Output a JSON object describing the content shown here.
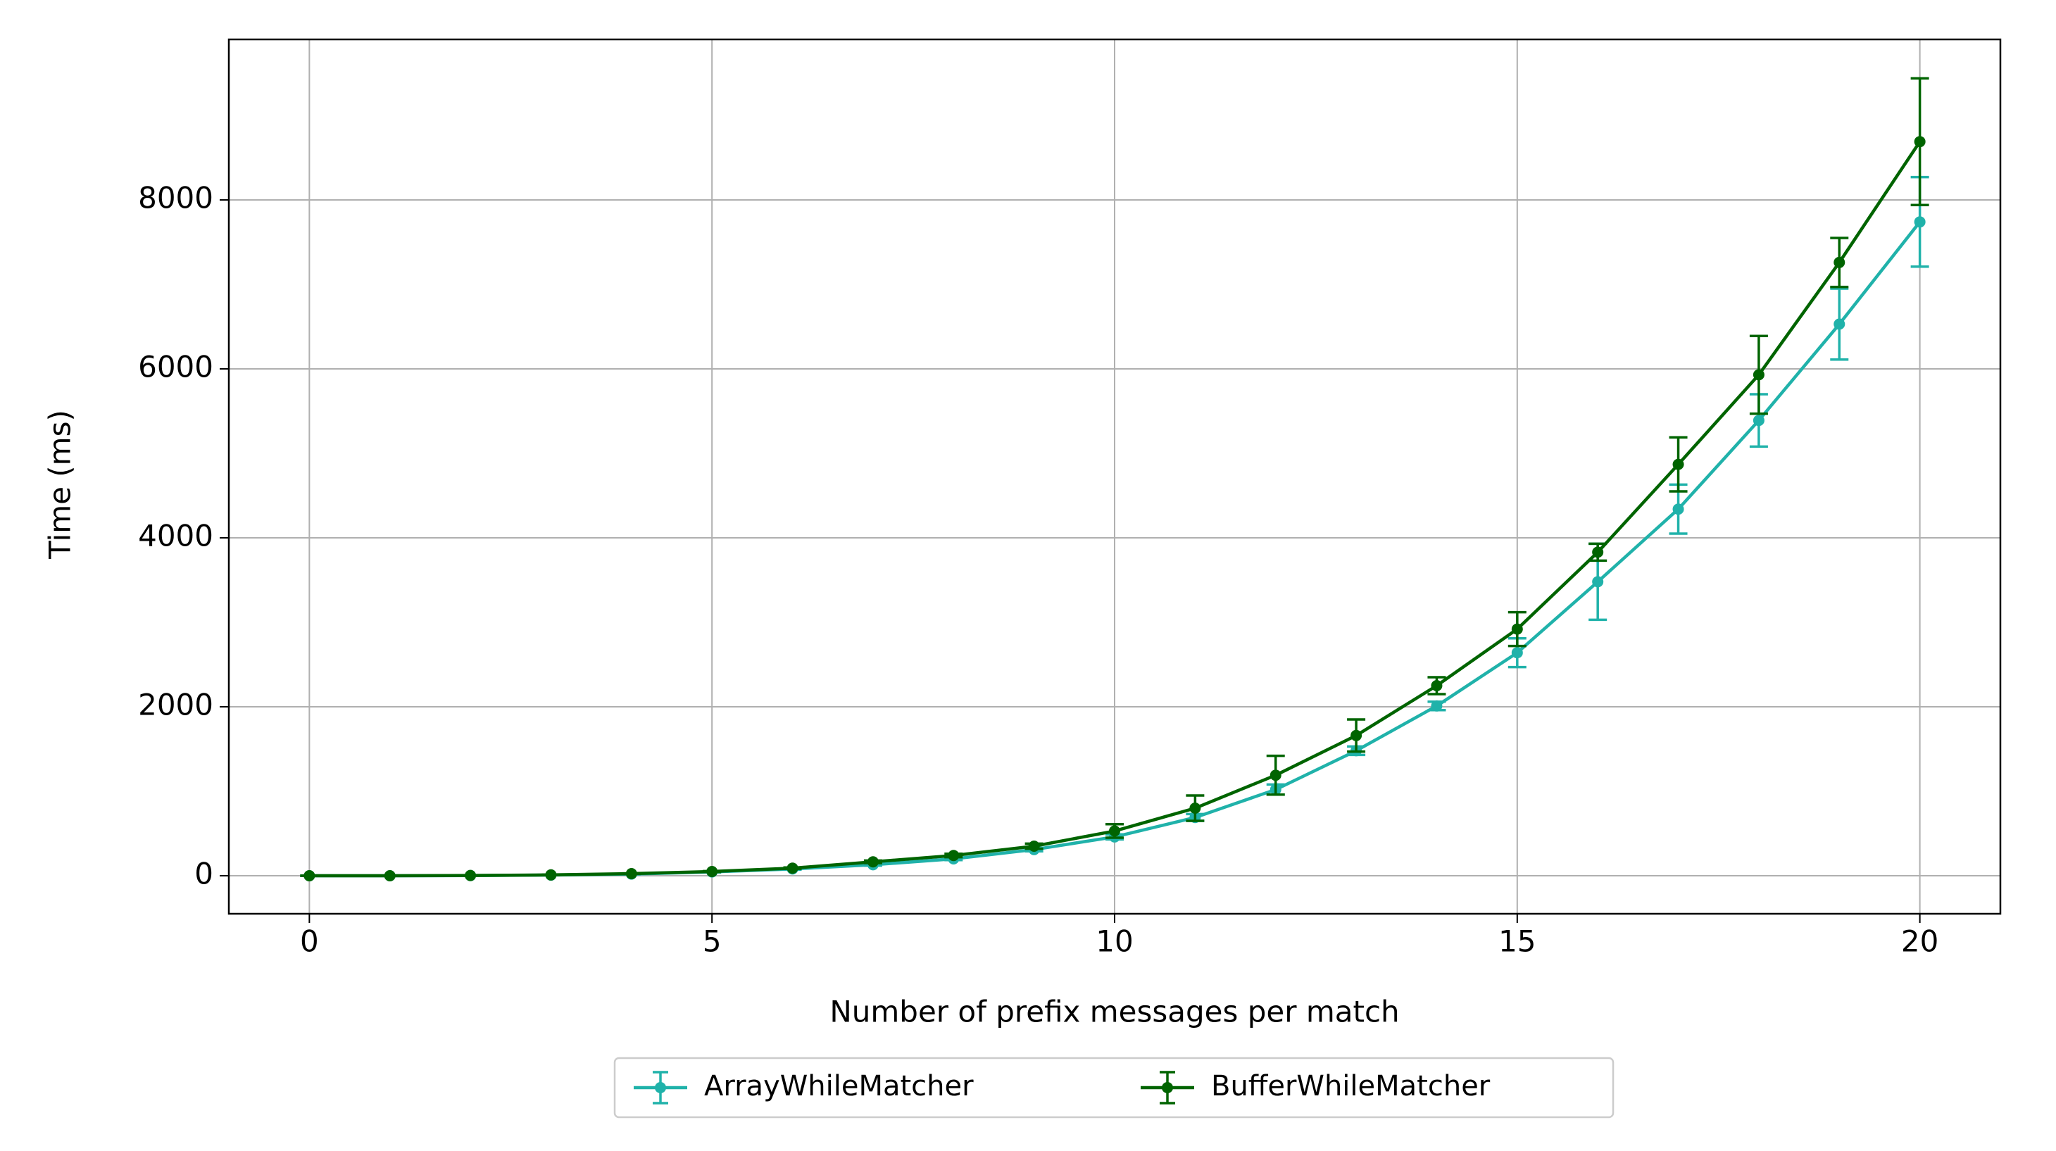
{
  "chart_data": {
    "type": "line",
    "xlabel": "Number of prefix messages per match",
    "ylabel": "Time (ms)",
    "x": [
      0,
      1,
      2,
      3,
      4,
      5,
      6,
      7,
      8,
      9,
      10,
      11,
      12,
      13,
      14,
      15,
      16,
      17,
      18,
      19,
      20
    ],
    "series": [
      {
        "name": "ArrayWhileMatcher",
        "color": "#20b2aa",
        "values": [
          0,
          0,
          2,
          8,
          20,
          45,
          80,
          130,
          200,
          310,
          460,
          690,
          1020,
          1480,
          2010,
          2640,
          3480,
          4340,
          5390,
          6530,
          7740
        ],
        "errors": [
          1,
          1,
          1,
          2,
          3,
          5,
          8,
          10,
          15,
          20,
          30,
          40,
          60,
          50,
          50,
          170,
          450,
          290,
          310,
          420,
          530
        ]
      },
      {
        "name": "BufferWhileMatcher",
        "color": "#006400",
        "values": [
          0,
          0,
          3,
          10,
          25,
          50,
          90,
          165,
          240,
          350,
          530,
          800,
          1190,
          1660,
          2250,
          2920,
          3830,
          4870,
          5930,
          7260,
          8690
        ],
        "errors": [
          1,
          1,
          1,
          2,
          3,
          5,
          8,
          15,
          20,
          30,
          80,
          150,
          230,
          190,
          100,
          200,
          100,
          320,
          460,
          290,
          750
        ]
      }
    ],
    "xlim": [
      -1,
      21
    ],
    "xticks": [
      0,
      5,
      10,
      15,
      20
    ],
    "ylim": [
      -450,
      9900
    ],
    "yticks": [
      0,
      2000,
      4000,
      6000,
      8000
    ],
    "grid": true,
    "legend": "bottom-outside"
  }
}
